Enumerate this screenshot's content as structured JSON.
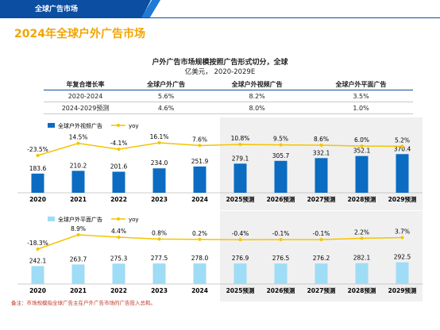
{
  "header": {
    "section_label": "全球广告市场"
  },
  "page_title": "2024年全球户外广告市场",
  "subtitle": "户外广告市场规模按照广告形式切分，全球",
  "unit": "亿美元， 2020-2029E",
  "growth_table": {
    "columns": [
      "年复合增长率",
      "全球户外广告",
      "全球户外视频广告",
      "全球户外平面广告"
    ],
    "rows": [
      [
        "2020-2024",
        "5.6%",
        "8.2%",
        "3.5%"
      ],
      [
        "2024-2029预测",
        "4.6%",
        "8.0%",
        "1.0%"
      ]
    ]
  },
  "colors": {
    "dark_blue": "#0b6cc2",
    "light_blue": "#9fdcf5",
    "line": "#f5c400",
    "shade": "#f0f0f0"
  },
  "chart_data": [
    {
      "type": "bar",
      "categories": [
        "2020",
        "2021",
        "2022",
        "2023",
        "2024",
        "2025预测",
        "2026预测",
        "2027预测",
        "2028预测",
        "2029预测"
      ],
      "series": [
        {
          "name": "全球户外视频广告",
          "values": [
            183.6,
            210.2,
            201.6,
            234.0,
            251.9,
            279.1,
            305.7,
            332.1,
            352.1,
            370.4
          ],
          "labels": [
            "183.6",
            "210.2",
            "201.6",
            "234.0",
            "251.9",
            "279.1",
            "305.7",
            "332.1",
            "352.1",
            "370.4"
          ]
        },
        {
          "name": "yoy",
          "values": [
            -23.5,
            14.5,
            -4.1,
            16.1,
            7.6,
            10.8,
            9.5,
            8.6,
            6.0,
            5.2
          ],
          "labels": [
            "-23.5%",
            "14.5%",
            "-4.1%",
            "16.1%",
            "7.6%",
            "10.8%",
            "9.5%",
            "8.6%",
            "6.0%",
            "5.2%"
          ]
        }
      ],
      "forecast_shaded_from": "2025预测"
    },
    {
      "type": "bar",
      "categories": [
        "2020",
        "2021",
        "2022",
        "2023",
        "2024",
        "2025预测",
        "2026预测",
        "2027预测",
        "2028预测",
        "2029预测"
      ],
      "series": [
        {
          "name": "全球户外平面广告",
          "values": [
            242.1,
            263.7,
            275.3,
            277.5,
            278.0,
            276.9,
            276.5,
            276.2,
            282.1,
            292.5
          ],
          "labels": [
            "242.1",
            "263.7",
            "275.3",
            "277.5",
            "278.0",
            "276.9",
            "276.5",
            "276.2",
            "282.1",
            "292.5"
          ]
        },
        {
          "name": "yoy",
          "values": [
            -18.3,
            8.9,
            4.4,
            0.8,
            0.2,
            -0.4,
            -0.1,
            -0.1,
            2.2,
            3.7
          ],
          "labels": [
            "-18.3%",
            "8.9%",
            "4.4%",
            "0.8%",
            "0.2%",
            "-0.4%",
            "-0.1%",
            "-0.1%",
            "2.2%",
            "3.7%"
          ]
        }
      ],
      "forecast_shaded_from": "2025预测"
    }
  ],
  "footnote": "备注：市场规模指全球广告主在户外广告市场的广告投入总和。"
}
